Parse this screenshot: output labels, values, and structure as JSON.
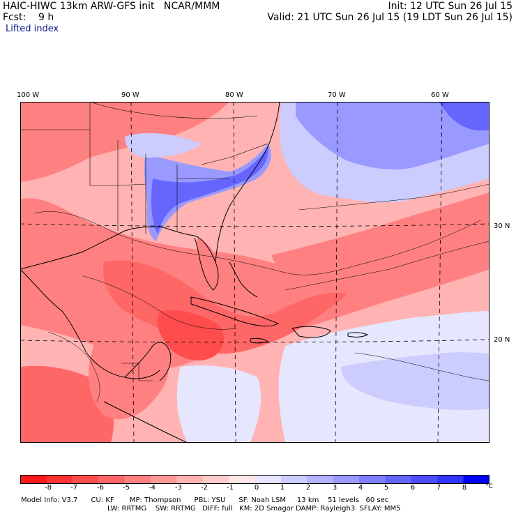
{
  "header": {
    "title_left": "HAIC-HIWC 13km ARW-GFS init   NCAR/MMM",
    "init": "Init: 12 UTC Sun 26 Jul 15",
    "fcst": "Fcst:    9 h",
    "valid": "Valid: 21 UTC Sun 26 Jul 15 (19 LDT Sun 26 Jul 15)",
    "field": "Lifted index"
  },
  "grid": {
    "lon_labels": [
      "100 W",
      "90 W",
      "80 W",
      "70 W",
      "60 W"
    ],
    "lat_labels": [
      "30 N",
      "20 N"
    ]
  },
  "colorbar": {
    "labels": [
      "-8",
      "-7",
      "-6",
      "-5",
      "-4",
      "-3",
      "-2",
      "-1",
      "0",
      "1",
      "2",
      "3",
      "4",
      "5",
      "6",
      "7",
      "8"
    ],
    "unit": "°C",
    "colors": [
      "#ff1a1a",
      "#ff3333",
      "#ff4d4d",
      "#ff6666",
      "#ff8080",
      "#ff9999",
      "#ffb3b3",
      "#ffcccc",
      "#ffe6e6",
      "#e6e6ff",
      "#ccccff",
      "#b3b3ff",
      "#9999ff",
      "#8080ff",
      "#6666ff",
      "#4d4dff",
      "#3333ff",
      "#0000ff"
    ]
  },
  "model_info": {
    "line1": "Model Info: V3.7      CU: KF       MP: Thompson      PBL: YSU      SF: Noah LSM     13 km    51 levels   60 sec",
    "line2": "LW: RRTMG    SW: RRTMG   DIFF: full   KM: 2D Smagor DAMP: Rayleigh3  SFLAY: MM5"
  }
}
